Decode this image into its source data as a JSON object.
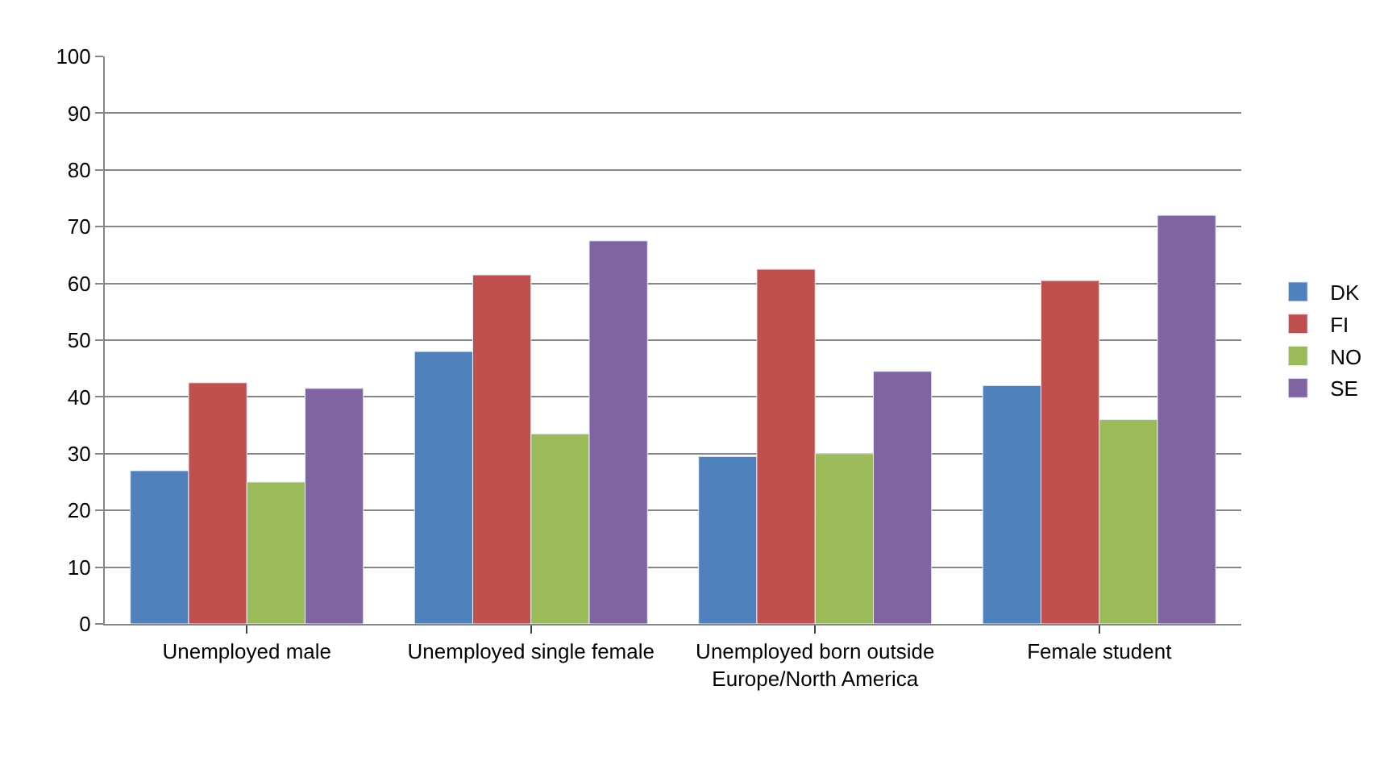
{
  "chart_data": {
    "type": "bar",
    "categories": [
      "Unemployed male",
      "Unemployed single female",
      "Unemployed born outside Europe/North America",
      "Female student"
    ],
    "series": [
      {
        "name": "DK",
        "color": "#4f81bd",
        "values": [
          27,
          48,
          29.5,
          42
        ]
      },
      {
        "name": "FI",
        "color": "#c0504d",
        "values": [
          42.5,
          61.5,
          62.5,
          60.5
        ]
      },
      {
        "name": "NO",
        "color": "#9bbb59",
        "values": [
          25,
          33.5,
          30,
          36
        ]
      },
      {
        "name": "SE",
        "color": "#8064a2",
        "values": [
          41.5,
          67.5,
          44.5,
          72
        ]
      }
    ],
    "ylim": [
      0,
      100
    ],
    "yticks": [
      0,
      10,
      20,
      30,
      40,
      50,
      60,
      70,
      80,
      90,
      100
    ],
    "grid": "y",
    "legend": "right"
  }
}
